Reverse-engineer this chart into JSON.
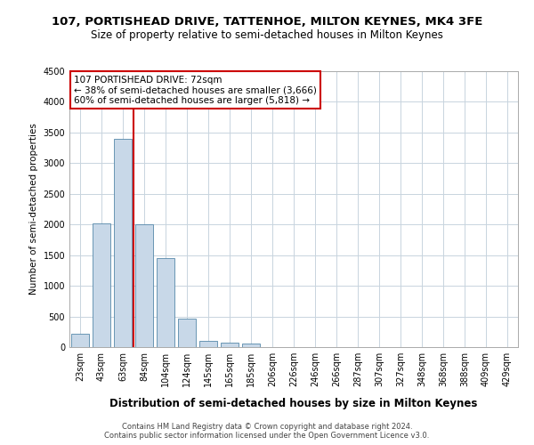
{
  "title1": "107, PORTISHEAD DRIVE, TATTENHOE, MILTON KEYNES, MK4 3FE",
  "title2": "Size of property relative to semi-detached houses in Milton Keynes",
  "xlabel": "Distribution of semi-detached houses by size in Milton Keynes",
  "ylabel": "Number of semi-detached properties",
  "footer1": "Contains HM Land Registry data © Crown copyright and database right 2024.",
  "footer2": "Contains public sector information licensed under the Open Government Licence v3.0.",
  "annotation_title": "107 PORTISHEAD DRIVE: 72sqm",
  "annotation_line1": "← 38% of semi-detached houses are smaller (3,666)",
  "annotation_line2": "60% of semi-detached houses are larger (5,818) →",
  "bar_color": "#c8d8e8",
  "bar_edge_color": "#5588aa",
  "annotation_box_edge_color": "#cc0000",
  "vline_color": "#cc0000",
  "categories": [
    "23sqm",
    "43sqm",
    "63sqm",
    "84sqm",
    "104sqm",
    "124sqm",
    "145sqm",
    "165sqm",
    "185sqm",
    "206sqm",
    "226sqm",
    "246sqm",
    "266sqm",
    "287sqm",
    "307sqm",
    "327sqm",
    "348sqm",
    "368sqm",
    "388sqm",
    "409sqm",
    "429sqm"
  ],
  "values": [
    220,
    2020,
    3400,
    2000,
    1450,
    470,
    100,
    70,
    55,
    0,
    0,
    0,
    0,
    0,
    0,
    0,
    0,
    0,
    0,
    0,
    0
  ],
  "ylim": [
    0,
    4500
  ],
  "yticks": [
    0,
    500,
    1000,
    1500,
    2000,
    2500,
    3000,
    3500,
    4000,
    4500
  ],
  "vline_bin_index": 2,
  "fig_bg": "#ffffff",
  "grid_color": "#c8d4de",
  "title_fontsize": 9.5,
  "subtitle_fontsize": 8.5,
  "xlabel_fontsize": 8.5,
  "ylabel_fontsize": 7.5,
  "tick_fontsize": 7,
  "footer_fontsize": 6,
  "annot_fontsize": 7.5
}
